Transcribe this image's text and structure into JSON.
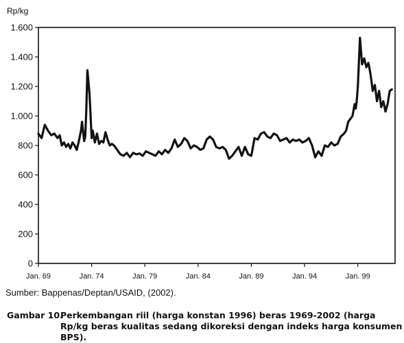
{
  "chart_data": {
    "type": "line",
    "ylabel": "Rp/kg",
    "ylim": [
      0,
      1600
    ],
    "yticks": [
      0,
      200,
      400,
      600,
      800,
      1000,
      1200,
      1400,
      1600
    ],
    "ytick_labels": [
      "0",
      "200",
      "400",
      "600",
      "800",
      "1.000",
      "1.200",
      "1.400",
      "1.600"
    ],
    "xlim": [
      1969.0,
      2002.5
    ],
    "xticks": [
      1969,
      1974,
      1979,
      1984,
      1989,
      1994,
      1999
    ],
    "xtick_labels": [
      "Jan. 69",
      "Jan. 74",
      "Jan. 79",
      "Jan. 84",
      "Jan. 89",
      "Jan. 94",
      "Jan. 99"
    ],
    "grid": false,
    "series": [
      {
        "color": "#111111",
        "x": [
          1969.0,
          1969.3,
          1969.6,
          1969.9,
          1970.2,
          1970.5,
          1970.8,
          1971.0,
          1971.2,
          1971.4,
          1971.6,
          1971.8,
          1972.0,
          1972.2,
          1972.4,
          1972.6,
          1972.8,
          1973.0,
          1973.1,
          1973.3,
          1973.4,
          1973.5,
          1973.6,
          1973.7,
          1973.8,
          1973.9,
          1974.0,
          1974.1,
          1974.3,
          1974.5,
          1974.7,
          1974.9,
          1975.1,
          1975.3,
          1975.5,
          1975.7,
          1975.9,
          1976.1,
          1976.4,
          1976.7,
          1977.0,
          1977.3,
          1977.6,
          1977.9,
          1978.2,
          1978.5,
          1978.8,
          1979.1,
          1979.4,
          1979.7,
          1980.0,
          1980.3,
          1980.6,
          1980.9,
          1981.2,
          1981.5,
          1981.8,
          1982.1,
          1982.4,
          1982.7,
          1983.0,
          1983.3,
          1983.6,
          1983.9,
          1984.2,
          1984.5,
          1984.8,
          1985.1,
          1985.4,
          1985.7,
          1986.0,
          1986.3,
          1986.6,
          1986.9,
          1987.2,
          1987.5,
          1987.8,
          1988.1,
          1988.4,
          1988.7,
          1989.0,
          1989.3,
          1989.6,
          1989.9,
          1990.2,
          1990.5,
          1990.8,
          1991.1,
          1991.4,
          1991.7,
          1992.0,
          1992.3,
          1992.6,
          1992.9,
          1993.2,
          1993.5,
          1993.8,
          1994.1,
          1994.4,
          1994.7,
          1995.0,
          1995.3,
          1995.6,
          1995.9,
          1996.2,
          1996.5,
          1996.8,
          1997.1,
          1997.4,
          1997.7,
          1997.9,
          1998.1,
          1998.3,
          1998.5,
          1998.6,
          1998.7,
          1998.8,
          1998.9,
          1999.0,
          1999.2,
          1999.4,
          1999.6,
          1999.8,
          2000.0,
          2000.2,
          2000.4,
          2000.6,
          2000.8,
          2001.0,
          2001.2,
          2001.4,
          2001.6,
          2001.8,
          2002.0,
          2002.2
        ],
        "y": [
          880,
          850,
          940,
          900,
          870,
          880,
          850,
          870,
          800,
          820,
          790,
          810,
          780,
          820,
          800,
          770,
          830,
          900,
          960,
          830,
          860,
          1050,
          1310,
          1230,
          1150,
          1000,
          850,
          900,
          820,
          880,
          810,
          830,
          820,
          890,
          840,
          800,
          810,
          800,
          770,
          740,
          730,
          750,
          720,
          750,
          740,
          745,
          730,
          760,
          750,
          740,
          730,
          760,
          740,
          770,
          750,
          780,
          840,
          790,
          810,
          850,
          830,
          780,
          800,
          790,
          770,
          780,
          840,
          860,
          840,
          790,
          780,
          790,
          770,
          710,
          730,
          760,
          790,
          730,
          790,
          740,
          730,
          850,
          840,
          880,
          890,
          860,
          850,
          880,
          870,
          830,
          840,
          850,
          820,
          840,
          830,
          840,
          820,
          830,
          850,
          800,
          720,
          760,
          730,
          800,
          790,
          820,
          800,
          810,
          860,
          880,
          900,
          960,
          980,
          1000,
          1040,
          1080,
          1050,
          1100,
          1200,
          1530,
          1350,
          1390,
          1330,
          1360,
          1280,
          1170,
          1210,
          1100,
          1170,
          1060,
          1100,
          1030,
          1080,
          1170,
          1180
        ]
      }
    ]
  },
  "texts": {
    "unit": "Rp/kg",
    "source": "Sumber: Bappenas/Deptan/USAID, (2002).",
    "caption_num": "Gambar 10.",
    "caption_text": "Perkembangan riil (harga konstan 1996) beras 1969-2002 (harga Rp/kg beras kualitas sedang dikoreksi  dengan indeks harga konsumen BPS)."
  }
}
